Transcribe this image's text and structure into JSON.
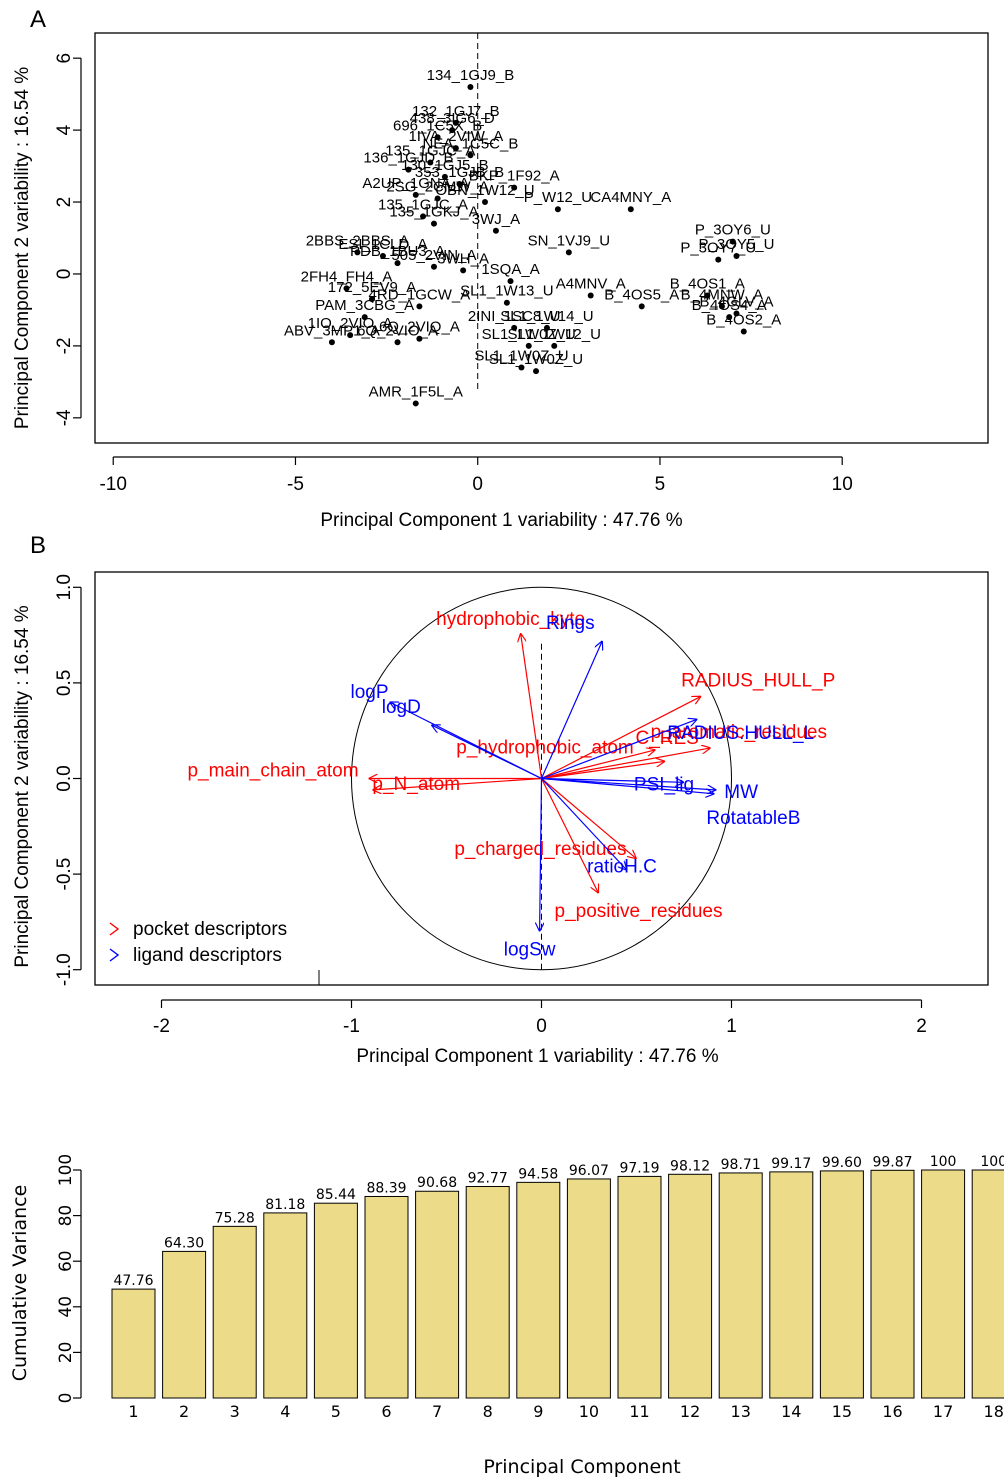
{
  "chart_data": [
    {
      "panel": "A",
      "type": "scatter",
      "xlabel": "Principal Component 1 variability : 47.76 %",
      "ylabel": "Principal Component 2 variability : 16.54 %",
      "xlim": [
        -10.5,
        14
      ],
      "ylim": [
        -4.7,
        6.7
      ],
      "xticks": [
        -10,
        -5,
        0,
        5,
        10
      ],
      "yticks": [
        -4,
        -2,
        0,
        2,
        4,
        6
      ],
      "points": [
        {
          "x": -0.2,
          "y": 5.2,
          "label": "134_1GJ9_B"
        },
        {
          "x": -0.6,
          "y": 4.2,
          "label": "132_1GJ7_B"
        },
        {
          "x": -0.7,
          "y": 4.0,
          "label": "438_3IG6_D"
        },
        {
          "x": -1.1,
          "y": 3.8,
          "label": "696_1C5X_B"
        },
        {
          "x": -0.6,
          "y": 3.5,
          "label": "1IVA_2VIW_A"
        },
        {
          "x": -0.2,
          "y": 3.3,
          "label": "NEA_1C5C_B"
        },
        {
          "x": -1.3,
          "y": 3.1,
          "label": "135_1GJC_A"
        },
        {
          "x": -1.9,
          "y": 2.9,
          "label": "136_1GJD_B"
        },
        {
          "x": -0.9,
          "y": 2.7,
          "label": "130_1GJ5_B"
        },
        {
          "x": -0.5,
          "y": 2.5,
          "label": "353_1GJB_B"
        },
        {
          "x": 1.0,
          "y": 2.4,
          "label": "BKP_1F92_A"
        },
        {
          "x": 4.2,
          "y": 1.8,
          "label": "CA4MNY_A"
        },
        {
          "x": -1.7,
          "y": 2.2,
          "label": "A2UP_1GNA_A"
        },
        {
          "x": -1.1,
          "y": 2.1,
          "label": "2SG_2CMW_A"
        },
        {
          "x": 0.2,
          "y": 2.0,
          "label": "OBN_1W12_U"
        },
        {
          "x": 2.2,
          "y": 1.8,
          "label": "P_W12_U"
        },
        {
          "x": -1.5,
          "y": 1.6,
          "label": "135_1GJC_A"
        },
        {
          "x": -1.2,
          "y": 1.4,
          "label": "135_1GKJ_A"
        },
        {
          "x": 0.5,
          "y": 1.2,
          "label": "3WJ_A"
        },
        {
          "x": 2.5,
          "y": 0.6,
          "label": "SN_1VJ9_U"
        },
        {
          "x": 7.0,
          "y": 0.9,
          "label": "P_3OY6_U"
        },
        {
          "x": 7.1,
          "y": 0.5,
          "label": "P_3OY5_U"
        },
        {
          "x": 6.6,
          "y": 0.4,
          "label": "P_3OY7_U"
        },
        {
          "x": -3.3,
          "y": 0.6,
          "label": "2BBS_2BBS_A"
        },
        {
          "x": -2.6,
          "y": 0.5,
          "label": "ESI_1CLD_A"
        },
        {
          "x": -2.2,
          "y": 0.3,
          "label": "PDB_1BU3_A"
        },
        {
          "x": -1.2,
          "y": 0.2,
          "label": "505_2VIN_A"
        },
        {
          "x": -0.4,
          "y": 0.1,
          "label": "3WH_A"
        },
        {
          "x": 0.9,
          "y": -0.2,
          "label": "1SQA_A"
        },
        {
          "x": 3.1,
          "y": -0.6,
          "label": "A4MNV_A"
        },
        {
          "x": 4.5,
          "y": -0.9,
          "label": "B_4OS5_A"
        },
        {
          "x": 6.3,
          "y": -0.6,
          "label": "B_4OS1_A"
        },
        {
          "x": 6.7,
          "y": -0.9,
          "label": "B_4MNW_A"
        },
        {
          "x": 6.9,
          "y": -1.2,
          "label": "B_4OS4_A"
        },
        {
          "x": 7.1,
          "y": -1.1,
          "label": "B_4GLV_A"
        },
        {
          "x": 7.3,
          "y": -1.6,
          "label": "B_4OS2_A"
        },
        {
          "x": -3.6,
          "y": -0.4,
          "label": "2FH4_FH4_A"
        },
        {
          "x": -2.9,
          "y": -0.7,
          "label": "172_5EV9_A"
        },
        {
          "x": -1.6,
          "y": -0.9,
          "label": "4RD_1GCW_A"
        },
        {
          "x": 0.8,
          "y": -0.8,
          "label": "SL1_1W13_U"
        },
        {
          "x": -3.1,
          "y": -1.2,
          "label": "PAM_3CBG_A"
        },
        {
          "x": -4.0,
          "y": -1.9,
          "label": "ABV_3MP1_A"
        },
        {
          "x": -3.5,
          "y": -1.7,
          "label": "1IO_2VIO_A"
        },
        {
          "x": -2.2,
          "y": -1.9,
          "label": "6Q_2VIO_A"
        },
        {
          "x": -1.6,
          "y": -1.8,
          "label": "6Q_2VIQ_A"
        },
        {
          "x": 1.0,
          "y": -1.5,
          "label": "2INI_1SC8_U"
        },
        {
          "x": 1.9,
          "y": -1.5,
          "label": "SL1_1W14_U"
        },
        {
          "x": 1.4,
          "y": -2.0,
          "label": "SL1_1W0Z_U"
        },
        {
          "x": 2.1,
          "y": -2.0,
          "label": "SL1_1W12_U"
        },
        {
          "x": 1.2,
          "y": -2.6,
          "label": "SL1_1W0Z_U"
        },
        {
          "x": 1.6,
          "y": -2.7,
          "label": "SL1_1W0Z_U"
        },
        {
          "x": -1.7,
          "y": -3.6,
          "label": "AMR_1F5L_A"
        }
      ]
    },
    {
      "panel": "B",
      "type": "scatter",
      "xlabel": "Principal Component 1 variability : 47.76 %",
      "ylabel": "Principal Component 2 variability : 16.54 %",
      "xlim": [
        -2.35,
        2.35
      ],
      "ylim": [
        -1.08,
        1.08
      ],
      "xticks": [
        -2,
        -1,
        0,
        1,
        2
      ],
      "yticks": [
        -1.0,
        -0.5,
        0.0,
        0.5,
        1.0
      ],
      "legend": [
        {
          "name": "pocket descriptors",
          "color": "#ff0000"
        },
        {
          "name": "ligand descriptors",
          "color": "#0000ff"
        }
      ],
      "pocket_descriptors": [
        {
          "name": "hydrophobic_kyte",
          "x": -0.11,
          "y": 0.76
        },
        {
          "name": "RADIUS_HULL_P",
          "x": 0.84,
          "y": 0.43
        },
        {
          "name": "C_RES",
          "x": 0.6,
          "y": 0.15
        },
        {
          "name": "p_aromatic_residues",
          "x": 0.89,
          "y": 0.16
        },
        {
          "name": "p_hydrophobic_atom",
          "x": 0.65,
          "y": 0.09
        },
        {
          "name": "p_main_chain_atom",
          "x": -0.91,
          "y": 0.0
        },
        {
          "name": "p_N_atom",
          "x": -0.89,
          "y": -0.06
        },
        {
          "name": "p_charged_residues",
          "x": 0.5,
          "y": -0.42
        },
        {
          "name": "p_positive_residues",
          "x": 0.3,
          "y": -0.6
        }
      ],
      "ligand_descriptors": [
        {
          "name": "Rings",
          "x": 0.32,
          "y": 0.72
        },
        {
          "name": "logP",
          "x": -0.8,
          "y": 0.4
        },
        {
          "name": "logD",
          "x": -0.58,
          "y": 0.28
        },
        {
          "name": "RADIUS.HULL_L",
          "x": 0.82,
          "y": 0.31
        },
        {
          "name": "PSI_lig",
          "x": 0.75,
          "y": -0.02
        },
        {
          "name": "MW",
          "x": 0.92,
          "y": -0.06
        },
        {
          "name": "RotatableB",
          "x": 0.91,
          "y": -0.08
        },
        {
          "name": "ratioH.C",
          "x": 0.45,
          "y": -0.48
        },
        {
          "name": "logSw",
          "x": -0.01,
          "y": -0.8
        }
      ]
    },
    {
      "panel": "C",
      "type": "bar",
      "xlabel": "Principal Component",
      "ylabel": "Cumulative Variance",
      "ylim": [
        0,
        100
      ],
      "yticks": [
        0,
        20,
        40,
        60,
        80,
        100
      ],
      "categories": [
        "1",
        "2",
        "3",
        "4",
        "5",
        "6",
        "7",
        "8",
        "9",
        "10",
        "11",
        "12",
        "13",
        "14",
        "15",
        "16",
        "17",
        "18"
      ],
      "values": [
        47.76,
        64.3,
        75.28,
        81.18,
        85.44,
        88.39,
        90.68,
        92.77,
        94.58,
        96.07,
        97.19,
        98.12,
        98.71,
        99.17,
        99.6,
        99.87,
        100,
        100
      ],
      "value_labels": [
        "47.76",
        "64.30",
        "75.28",
        "81.18",
        "85.44",
        "88.39",
        "90.68",
        "92.77",
        "94.58",
        "96.07",
        "97.19",
        "98.12",
        "98.71",
        "99.17",
        "99.60",
        "99.87",
        "100",
        "100"
      ],
      "bar_color": "#ecdc8a"
    }
  ]
}
